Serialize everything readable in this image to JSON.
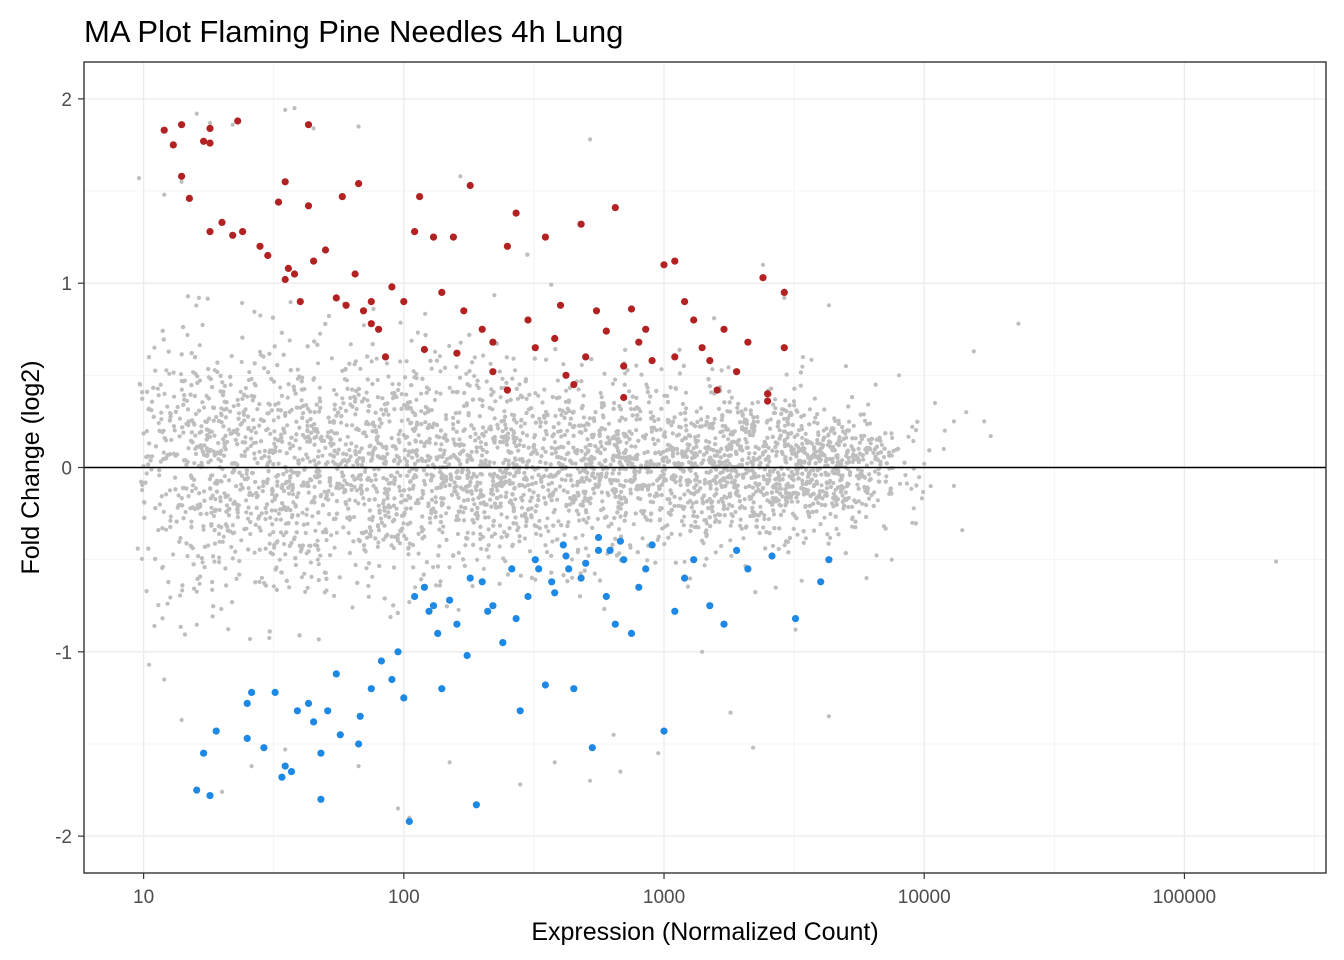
{
  "chart_data": {
    "type": "scatter",
    "title": "MA Plot Flaming Pine Needles 4h Lung",
    "xlabel": "Expression (Normalized Count)",
    "ylabel": "Fold Change (log2)",
    "x_scale": "log10",
    "xlim": [
      5.9,
      350000
    ],
    "ylim": [
      -2.2,
      2.2
    ],
    "x_ticks": [
      10,
      100,
      1000,
      10000,
      100000
    ],
    "x_tick_labels": [
      "10",
      "100",
      "1000",
      "10000",
      "100000"
    ],
    "y_ticks": [
      2,
      1,
      0,
      -1,
      -2
    ],
    "y_tick_labels": [
      "2",
      "1",
      "0",
      "-1",
      "-2"
    ],
    "grid": true,
    "legend": "none",
    "reference_line": {
      "axis": "y",
      "value": 0,
      "color": "#000000"
    },
    "colors": {
      "not_significant": "#bebebe",
      "up": "#b22222",
      "down": "#1e88e5"
    },
    "series": [
      {
        "key": "not_significant",
        "color": "#bebebe",
        "points": [
          [
            9.6,
            1.57
          ],
          [
            9.5,
            -0.44
          ],
          [
            9.8,
            -0.08
          ],
          [
            11.0,
            0.65
          ],
          [
            12.0,
            1.48
          ],
          [
            14.0,
            1.55
          ],
          [
            16.0,
            1.92
          ],
          [
            18.0,
            1.87
          ],
          [
            22.0,
            1.86
          ],
          [
            35.0,
            1.94
          ],
          [
            38.0,
            1.95
          ],
          [
            45.0,
            1.84
          ],
          [
            67.0,
            1.85
          ],
          [
            165.0,
            1.58
          ],
          [
            520.0,
            1.78
          ],
          [
            2400.0,
            1.1
          ],
          [
            2900.0,
            0.92
          ],
          [
            4300.0,
            0.88
          ],
          [
            5000.0,
            0.55
          ],
          [
            6500.0,
            0.45
          ],
          [
            8000.0,
            0.5
          ],
          [
            9000.0,
            0.22
          ],
          [
            11000.0,
            0.35
          ],
          [
            12000.0,
            0.2
          ],
          [
            13000.0,
            0.25
          ],
          [
            14500.0,
            0.3
          ],
          [
            15500.0,
            0.63
          ],
          [
            17000.0,
            0.25
          ],
          [
            18000.0,
            0.17
          ],
          [
            23000.0,
            0.78
          ],
          [
            13000.0,
            -0.1
          ],
          [
            14000.0,
            -0.34
          ],
          [
            9000.0,
            -0.3
          ],
          [
            6000.0,
            -0.6
          ],
          [
            10000.0,
            0.02
          ],
          [
            3200.0,
            -0.88
          ],
          [
            4300.0,
            -1.35
          ],
          [
            7500.0,
            -0.5
          ],
          [
            225000.0,
            -0.51
          ],
          [
            1400.0,
            -1.0
          ],
          [
            2200.0,
            -1.52
          ],
          [
            1800.0,
            -1.33
          ],
          [
            380.0,
            -1.6
          ],
          [
            280.0,
            -1.72
          ],
          [
            95.0,
            -1.85
          ],
          [
            67.0,
            -1.62
          ],
          [
            105.0,
            -1.9
          ],
          [
            35.0,
            -1.53
          ],
          [
            26.0,
            -1.62
          ],
          [
            20.0,
            -1.76
          ],
          [
            14.0,
            -1.37
          ],
          [
            12.0,
            -1.15
          ],
          [
            11.0,
            -0.86
          ],
          [
            10.5,
            -1.07
          ],
          [
            150.0,
            -1.6
          ],
          [
            520.0,
            -1.7
          ],
          [
            680.0,
            -1.65
          ],
          [
            950.0,
            -1.55
          ],
          [
            640.0,
            -1.45
          ]
        ]
      },
      {
        "key": "up",
        "color": "#b22222",
        "points": [
          [
            12.0,
            1.83
          ],
          [
            13.0,
            1.75
          ],
          [
            14.0,
            1.86
          ],
          [
            14.0,
            1.58
          ],
          [
            15.0,
            1.46
          ],
          [
            17.0,
            1.77
          ],
          [
            18.0,
            1.84
          ],
          [
            18.0,
            1.76
          ],
          [
            23.0,
            1.88
          ],
          [
            43.0,
            1.86
          ],
          [
            35.0,
            1.55
          ],
          [
            33.0,
            1.44
          ],
          [
            43.0,
            1.42
          ],
          [
            58.0,
            1.47
          ],
          [
            67.0,
            1.54
          ],
          [
            18.0,
            1.28
          ],
          [
            20.0,
            1.33
          ],
          [
            22.0,
            1.26
          ],
          [
            24.0,
            1.28
          ],
          [
            28.0,
            1.2
          ],
          [
            30.0,
            1.15
          ],
          [
            35.0,
            1.02
          ],
          [
            36.0,
            1.08
          ],
          [
            38.0,
            1.05
          ],
          [
            40.0,
            0.9
          ],
          [
            45.0,
            1.12
          ],
          [
            50.0,
            1.18
          ],
          [
            55.0,
            0.92
          ],
          [
            60.0,
            0.88
          ],
          [
            65.0,
            1.05
          ],
          [
            70.0,
            0.85
          ],
          [
            75.0,
            0.9
          ],
          [
            80.0,
            0.75
          ],
          [
            90.0,
            0.98
          ],
          [
            100.0,
            0.9
          ],
          [
            110.0,
            1.28
          ],
          [
            115.0,
            1.47
          ],
          [
            130.0,
            1.25
          ],
          [
            140.0,
            0.95
          ],
          [
            155.0,
            1.25
          ],
          [
            170.0,
            0.85
          ],
          [
            180.0,
            1.53
          ],
          [
            200.0,
            0.75
          ],
          [
            220.0,
            0.68
          ],
          [
            250.0,
            1.2
          ],
          [
            270.0,
            1.38
          ],
          [
            300.0,
            0.8
          ],
          [
            320.0,
            0.65
          ],
          [
            350.0,
            1.25
          ],
          [
            380.0,
            0.7
          ],
          [
            400.0,
            0.88
          ],
          [
            420.0,
            0.5
          ],
          [
            480.0,
            1.32
          ],
          [
            500.0,
            0.6
          ],
          [
            550.0,
            0.85
          ],
          [
            600.0,
            0.74
          ],
          [
            650.0,
            1.41
          ],
          [
            700.0,
            0.55
          ],
          [
            750.0,
            0.86
          ],
          [
            800.0,
            0.68
          ],
          [
            850.0,
            0.75
          ],
          [
            900.0,
            0.58
          ],
          [
            1000.0,
            1.1
          ],
          [
            1100.0,
            1.12
          ],
          [
            1100.0,
            0.6
          ],
          [
            1200.0,
            0.9
          ],
          [
            1300.0,
            0.8
          ],
          [
            1400.0,
            0.65
          ],
          [
            1500.0,
            0.58
          ],
          [
            1700.0,
            0.75
          ],
          [
            1900.0,
            0.52
          ],
          [
            2100.0,
            0.68
          ],
          [
            2400.0,
            1.03
          ],
          [
            2500.0,
            0.4
          ],
          [
            2900.0,
            0.95
          ],
          [
            2900.0,
            0.65
          ],
          [
            2500.0,
            0.36
          ],
          [
            1600.0,
            0.42
          ],
          [
            700.0,
            0.38
          ],
          [
            450.0,
            0.45
          ],
          [
            250.0,
            0.42
          ],
          [
            220.0,
            0.52
          ],
          [
            160.0,
            0.62
          ],
          [
            120.0,
            0.64
          ],
          [
            85.0,
            0.6
          ],
          [
            75.0,
            0.78
          ]
        ]
      },
      {
        "key": "down",
        "color": "#1e88e5",
        "points": [
          [
            16.0,
            -1.75
          ],
          [
            17.0,
            -1.55
          ],
          [
            18.0,
            -1.78
          ],
          [
            19.0,
            -1.43
          ],
          [
            25.0,
            -1.47
          ],
          [
            26.0,
            -1.22
          ],
          [
            25.0,
            -1.28
          ],
          [
            29.0,
            -1.52
          ],
          [
            32.0,
            -1.22
          ],
          [
            35.0,
            -1.62
          ],
          [
            34.0,
            -1.68
          ],
          [
            37.0,
            -1.65
          ],
          [
            39.0,
            -1.32
          ],
          [
            43.0,
            -1.28
          ],
          [
            45.0,
            -1.38
          ],
          [
            48.0,
            -1.55
          ],
          [
            48.0,
            -1.8
          ],
          [
            51.0,
            -1.32
          ],
          [
            55.0,
            -1.12
          ],
          [
            57.0,
            -1.45
          ],
          [
            67.0,
            -1.5
          ],
          [
            68.0,
            -1.35
          ],
          [
            75.0,
            -1.2
          ],
          [
            82.0,
            -1.05
          ],
          [
            90.0,
            -1.15
          ],
          [
            95.0,
            -1.0
          ],
          [
            100.0,
            -1.25
          ],
          [
            105.0,
            -1.92
          ],
          [
            120.0,
            -0.65
          ],
          [
            125.0,
            -0.78
          ],
          [
            135.0,
            -0.9
          ],
          [
            140.0,
            -1.2
          ],
          [
            150.0,
            -0.72
          ],
          [
            160.0,
            -0.85
          ],
          [
            175.0,
            -1.02
          ],
          [
            190.0,
            -1.83
          ],
          [
            200.0,
            -0.62
          ],
          [
            220.0,
            -0.75
          ],
          [
            240.0,
            -0.95
          ],
          [
            260.0,
            -0.55
          ],
          [
            280.0,
            -1.32
          ],
          [
            300.0,
            -0.7
          ],
          [
            320.0,
            -0.5
          ],
          [
            350.0,
            -1.18
          ],
          [
            380.0,
            -0.68
          ],
          [
            410.0,
            -0.42
          ],
          [
            430.0,
            -0.55
          ],
          [
            450.0,
            -1.2
          ],
          [
            480.0,
            -0.6
          ],
          [
            530.0,
            -1.52
          ],
          [
            560.0,
            -0.45
          ],
          [
            600.0,
            -0.7
          ],
          [
            650.0,
            -0.85
          ],
          [
            700.0,
            -0.5
          ],
          [
            750.0,
            -0.9
          ],
          [
            800.0,
            -0.65
          ],
          [
            850.0,
            -0.55
          ],
          [
            900.0,
            -0.42
          ],
          [
            1000.0,
            -1.43
          ],
          [
            1100.0,
            -0.78
          ],
          [
            1200.0,
            -0.6
          ],
          [
            1300.0,
            -0.5
          ],
          [
            1500.0,
            -0.75
          ],
          [
            1700.0,
            -0.85
          ],
          [
            1900.0,
            -0.45
          ],
          [
            2100.0,
            -0.55
          ],
          [
            2600.0,
            -0.48
          ],
          [
            3200.0,
            -0.82
          ],
          [
            4000.0,
            -0.62
          ],
          [
            4300.0,
            -0.5
          ],
          [
            110.0,
            -0.7
          ],
          [
            130.0,
            -0.75
          ],
          [
            180.0,
            -0.6
          ],
          [
            210.0,
            -0.78
          ],
          [
            270.0,
            -0.82
          ],
          [
            330.0,
            -0.55
          ],
          [
            370.0,
            -0.62
          ],
          [
            420.0,
            -0.48
          ],
          [
            500.0,
            -0.52
          ],
          [
            560.0,
            -0.38
          ],
          [
            620.0,
            -0.45
          ],
          [
            680.0,
            -0.4
          ]
        ]
      }
    ]
  }
}
